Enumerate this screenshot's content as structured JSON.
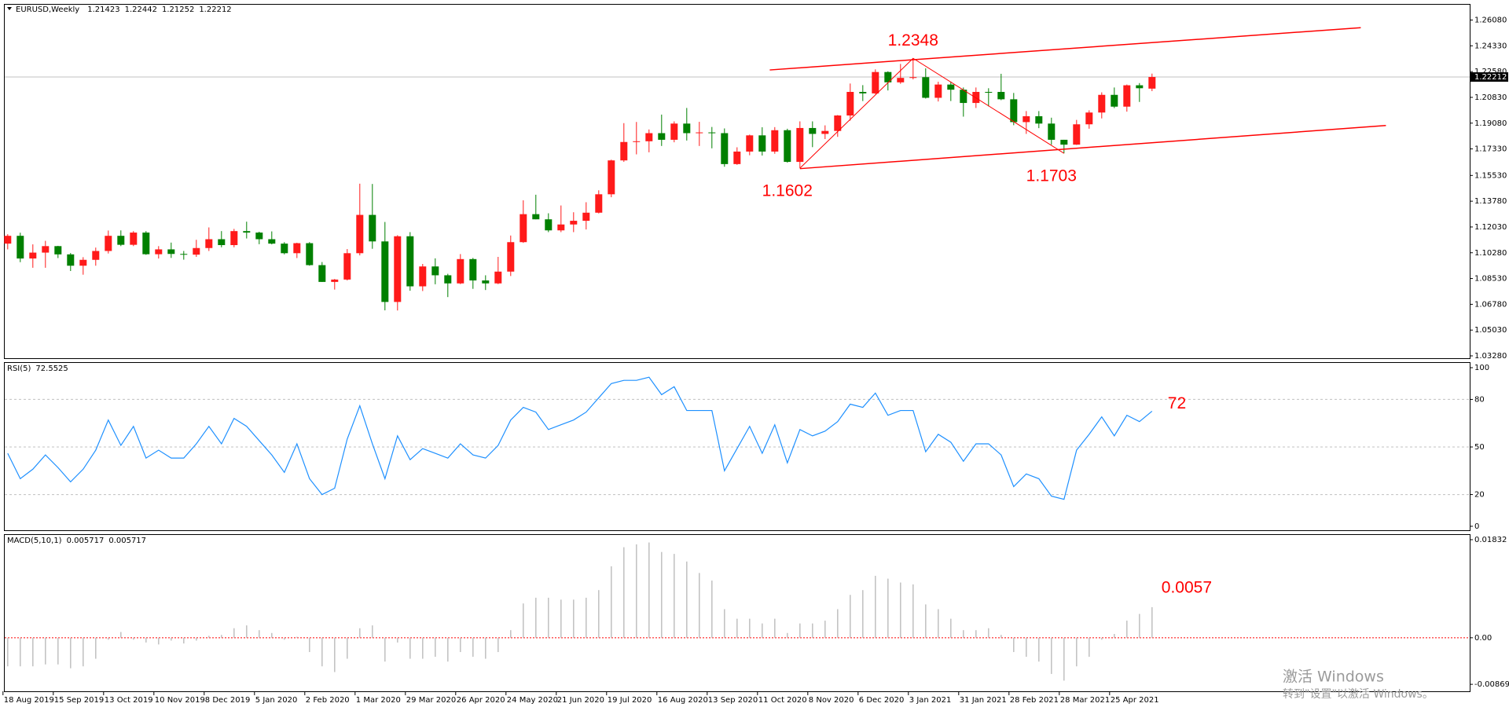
{
  "chart_data": [
    {
      "type": "candlestick",
      "title": "EURUSD,Weekly",
      "categories": [
        "18 Aug 2019",
        null,
        null,
        null,
        "15 Sep 2019",
        null,
        null,
        null,
        "13 Oct 2019",
        null,
        null,
        null,
        "10 Nov 2019",
        null,
        null,
        null,
        "8 Dec 2019",
        null,
        null,
        null,
        "5 Jan 2020",
        null,
        null,
        null,
        "2 Feb 2020",
        null,
        null,
        null,
        "1 Mar 2020",
        null,
        null,
        null,
        "29 Mar 2020",
        null,
        null,
        null,
        "26 Apr 2020",
        null,
        null,
        null,
        "24 May 2020",
        null,
        null,
        null,
        "21 Jun 2020",
        null,
        null,
        null,
        "19 Jul 2020",
        null,
        null,
        null,
        "16 Aug 2020",
        null,
        null,
        null,
        "13 Sep 2020",
        null,
        null,
        null,
        "11 Oct 2020",
        null,
        null,
        null,
        "8 Nov 2020",
        null,
        null,
        null,
        "6 Dec 2020",
        null,
        null,
        null,
        "3 Jan 2021",
        null,
        null,
        null,
        "31 Jan 2021",
        null,
        null,
        null,
        "28 Feb 2021",
        null,
        null,
        null,
        "28 Mar 2021",
        null,
        null,
        null,
        "25 Apr 2021",
        null,
        null,
        null
      ],
      "open": [
        1.109,
        1.1143,
        1.0989,
        1.1029,
        1.1073,
        1.1017,
        1.094,
        1.098,
        1.104,
        1.1143,
        1.1082,
        1.1165,
        1.1018,
        1.1051,
        1.102,
        1.1015,
        1.106,
        1.112,
        1.108,
        1.1175,
        1.1165,
        1.112,
        1.109,
        1.1025,
        1.1093,
        1.0944,
        1.083,
        1.0846,
        1.1025,
        1.1285,
        1.1105,
        1.0694,
        1.114,
        1.08,
        1.0935,
        1.0875,
        1.082,
        1.0985,
        1.084,
        1.082,
        1.09,
        1.11,
        1.129,
        1.1255,
        1.118,
        1.122,
        1.1245,
        1.13,
        1.1425,
        1.1655,
        1.178,
        1.1785,
        1.184,
        1.1795,
        1.1905,
        1.184,
        1.1845,
        1.184,
        1.163,
        1.1715,
        1.1825,
        1.1715,
        1.186,
        1.1645,
        1.1875,
        1.1835,
        1.1855,
        1.196,
        1.212,
        1.211,
        1.2255,
        1.2185,
        1.2215,
        1.222,
        1.208,
        1.217,
        1.2135,
        1.2045,
        1.212,
        1.212,
        1.207,
        1.1915,
        1.1955,
        1.1905,
        1.1795,
        1.1762,
        1.19,
        1.198,
        1.21,
        1.202,
        1.2165,
        1.21423
      ],
      "high": [
        1.1154,
        1.1164,
        1.1085,
        1.1109,
        1.1075,
        1.1026,
        1.0998,
        1.1063,
        1.1179,
        1.118,
        1.1175,
        1.1175,
        1.1073,
        1.1097,
        1.104,
        1.1116,
        1.12,
        1.1175,
        1.119,
        1.1239,
        1.1171,
        1.1173,
        1.11,
        1.1096,
        1.11,
        1.0965,
        1.085,
        1.1053,
        1.1497,
        1.1495,
        1.1237,
        1.1147,
        1.1168,
        1.0952,
        1.099,
        1.0885,
        1.1019,
        1.0993,
        1.0875,
        1.1,
        1.1145,
        1.1384,
        1.1422,
        1.1296,
        1.1349,
        1.1303,
        1.1371,
        1.1452,
        1.166,
        1.1908,
        1.1916,
        1.1865,
        1.1966,
        1.192,
        1.2011,
        1.1917,
        1.1882,
        1.1872,
        1.1744,
        1.183,
        1.188,
        1.1881,
        1.187,
        1.192,
        1.192,
        1.1893,
        1.1963,
        1.2177,
        1.2166,
        1.2273,
        1.226,
        1.231,
        1.2348,
        1.228,
        1.2189,
        1.219,
        1.215,
        1.215,
        1.2145,
        1.2243,
        1.2113,
        1.199,
        1.199,
        1.1945,
        1.1795,
        1.193,
        1.1995,
        1.2117,
        1.215,
        1.217,
        1.218,
        1.22442
      ],
      "low": [
        1.1051,
        1.0964,
        1.0926,
        1.0926,
        1.0992,
        1.0904,
        1.0879,
        1.094,
        1.1023,
        1.1073,
        1.1073,
        1.1014,
        1.0989,
        1.0993,
        1.0981,
        1.1,
        1.104,
        1.1065,
        1.1065,
        1.1125,
        1.1086,
        1.1085,
        1.1017,
        1.0992,
        1.094,
        1.083,
        1.0778,
        1.084,
        1.101,
        1.1055,
        1.0637,
        1.0636,
        1.077,
        1.0768,
        1.0814,
        1.0727,
        1.0815,
        1.0783,
        1.0775,
        1.0815,
        1.087,
        1.1095,
        1.1255,
        1.1168,
        1.1168,
        1.1168,
        1.1186,
        1.1295,
        1.1405,
        1.1645,
        1.1696,
        1.171,
        1.1753,
        1.1778,
        1.179,
        1.1753,
        1.1737,
        1.1612,
        1.1625,
        1.169,
        1.1688,
        1.17,
        1.164,
        1.1602,
        1.1745,
        1.18,
        1.1815,
        1.1925,
        1.2058,
        1.2105,
        1.213,
        1.2175,
        1.2205,
        1.2075,
        1.2055,
        1.2058,
        1.1952,
        1.2011,
        1.2022,
        1.2064,
        1.1894,
        1.1835,
        1.1874,
        1.1762,
        1.1703,
        1.176,
        1.187,
        1.194,
        1.201,
        1.1986,
        1.2052,
        1.21252
      ],
      "close": [
        1.1143,
        1.0989,
        1.1029,
        1.1073,
        1.1017,
        1.094,
        1.098,
        1.104,
        1.1143,
        1.1082,
        1.1165,
        1.1018,
        1.1051,
        1.102,
        1.1015,
        1.106,
        1.112,
        1.108,
        1.1175,
        1.1165,
        1.112,
        1.109,
        1.1025,
        1.1093,
        1.0944,
        1.083,
        1.0846,
        1.1025,
        1.1285,
        1.1105,
        1.0694,
        1.114,
        1.08,
        1.0935,
        1.0875,
        1.082,
        1.0985,
        1.084,
        1.082,
        1.09,
        1.11,
        1.129,
        1.1255,
        1.118,
        1.122,
        1.1245,
        1.13,
        1.1425,
        1.1655,
        1.178,
        1.1785,
        1.184,
        1.1795,
        1.1905,
        1.184,
        1.1845,
        1.184,
        1.163,
        1.1715,
        1.1825,
        1.1715,
        1.186,
        1.1645,
        1.1875,
        1.1835,
        1.1855,
        1.196,
        1.212,
        1.211,
        1.2255,
        1.2185,
        1.2215,
        1.222,
        1.208,
        1.217,
        1.2135,
        1.2045,
        1.212,
        1.212,
        1.207,
        1.1915,
        1.1955,
        1.1905,
        1.1795,
        1.1762,
        1.19,
        1.198,
        1.21,
        1.202,
        1.2165,
        1.2145,
        1.22212
      ],
      "up_color": "#ff1a1a",
      "down_color": "#008000",
      "ylim": [
        1.0312,
        1.2712
      ],
      "yticks": [
        {
          "value": 1.2608,
          "label": "1.26080"
        },
        {
          "value": 1.2433,
          "label": "1.24330"
        },
        {
          "value": 1.2258,
          "label": "1.22580"
        },
        {
          "value": 1.2083,
          "label": "1.20830"
        },
        {
          "value": 1.1908,
          "label": "1.19080"
        },
        {
          "value": 1.1733,
          "label": "1.17330"
        },
        {
          "value": 1.1553,
          "label": "1.15530"
        },
        {
          "value": 1.1378,
          "label": "1.13780"
        },
        {
          "value": 1.1203,
          "label": "1.12030"
        },
        {
          "value": 1.1028,
          "label": "1.10280"
        },
        {
          "value": 1.0853,
          "label": "1.08530"
        },
        {
          "value": 1.0678,
          "label": "1.06780"
        },
        {
          "value": 1.0503,
          "label": "1.05030"
        },
        {
          "value": 1.0328,
          "label": "1.03280"
        }
      ],
      "annotations": [
        1.1602,
        1.2348,
        1.1703
      ],
      "annotation_color": "#ff0000",
      "channels": [
        {
          "from": [
            60.6,
            1.2269
          ],
          "to": [
            107.6,
            1.2556
          ]
        },
        {
          "from": [
            63,
            1.1599
          ],
          "to": [
            109.6,
            1.1892
          ]
        }
      ],
      "channel_color": "#ff0000"
    },
    {
      "type": "line",
      "title": "RSI(5)",
      "color": "#1e90ff",
      "values": [
        46,
        30,
        36,
        45,
        37,
        28,
        36,
        48,
        67,
        51,
        63,
        43,
        48,
        43,
        43,
        52,
        63,
        52,
        68,
        63,
        54,
        45,
        34,
        52,
        30,
        20,
        24,
        55,
        76,
        52,
        30,
        57,
        42,
        49,
        46,
        43,
        52,
        45,
        43,
        51,
        67,
        75,
        72,
        61,
        64,
        67,
        72,
        81,
        90,
        92,
        92,
        94,
        83,
        88,
        73,
        73,
        73,
        35,
        49,
        63,
        46,
        64,
        40,
        61,
        57,
        60,
        66,
        77,
        75,
        84,
        70,
        73,
        73,
        47,
        58,
        53,
        41,
        52,
        52,
        45,
        25,
        33,
        30,
        19,
        17,
        48,
        58,
        69,
        57,
        70,
        66,
        72.5525
      ],
      "ylim": [
        -2.5,
        103
      ],
      "yticks": [
        0,
        20,
        50,
        80,
        100
      ],
      "levels": [
        20,
        50,
        80
      ],
      "annotation": 72,
      "annotation_color": "#ff0000"
    },
    {
      "type": "bar",
      "title": "MACD(5,10,1)",
      "color": "#c0c0c0",
      "values": [
        -0.00534,
        -0.00534,
        -0.00534,
        -0.00498,
        -0.00498,
        -0.0057,
        -0.00534,
        -0.00392,
        -0.00036,
        0.00107,
        -0.00036,
        -0.00089,
        -0.00125,
        -0.00053,
        -0.00107,
        -0.00053,
        0.00036,
        0.00053,
        0.00178,
        0.00231,
        0.00142,
        0.00089,
        -0.00036,
        0.00018,
        -0.00267,
        -0.00534,
        -0.00641,
        -0.00392,
        0.00178,
        0.00231,
        -0.00445,
        -0.00089,
        -0.00392,
        -0.00392,
        -0.00356,
        -0.00445,
        -0.00267,
        -0.00356,
        -0.00392,
        -0.00267,
        0.00142,
        0.00641,
        0.00748,
        0.00748,
        0.00712,
        0.00712,
        0.00748,
        0.0089,
        0.01335,
        0.01691,
        0.01744,
        0.0178,
        0.01602,
        0.01566,
        0.01424,
        0.0121,
        0.01068,
        0.00534,
        0.00356,
        0.00356,
        0.00267,
        0.00356,
        0.00089,
        0.00267,
        0.00267,
        0.0032,
        0.00534,
        0.00801,
        0.0089,
        0.01157,
        0.01104,
        0.01032,
        0.00997,
        0.00623,
        0.00534,
        0.00356,
        0.00142,
        0.00142,
        0.00178,
        0.00053,
        -0.00267,
        -0.00356,
        -0.00445,
        -0.00676,
        -0.00801,
        -0.00534,
        -0.00356,
        -0.00036,
        0.00071,
        0.0032,
        0.00445,
        0.005717
      ],
      "ylim": [
        -0.01,
        0.0192
      ],
      "yticks": [
        0.01832,
        {
          "value": 0,
          "label": "0.00"
        },
        -0.008698
      ],
      "zero_line_color": "#ff0000",
      "annotation": 0.0057,
      "annotation_color": "#ff0000"
    }
  ],
  "watermark": {
    "line1": "激活 Windows",
    "line2": "转到\"设置\"以激活 Windows。"
  }
}
